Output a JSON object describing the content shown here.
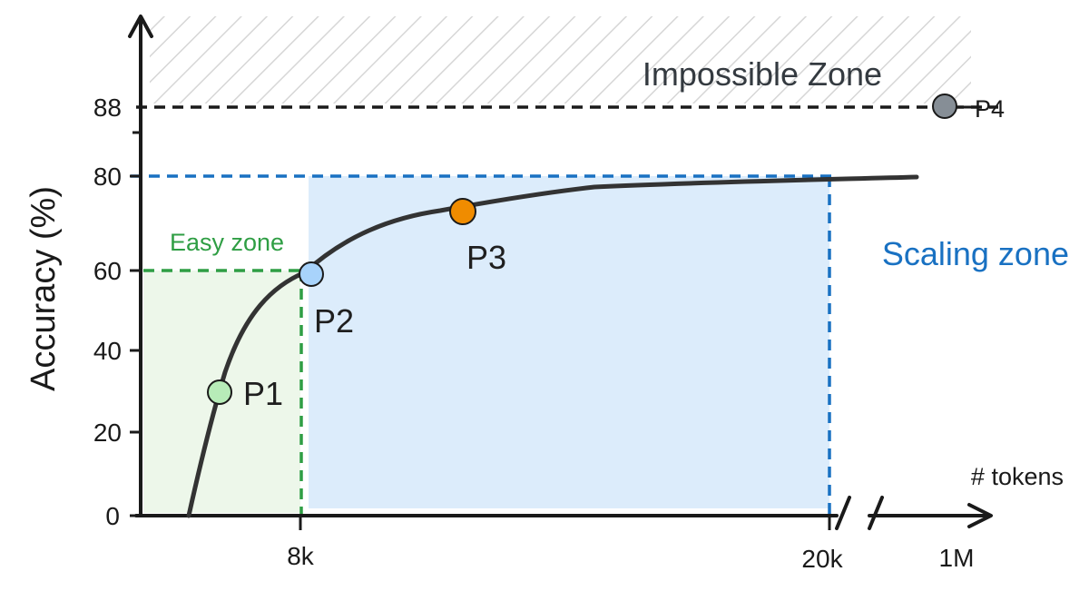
{
  "chart_data": {
    "type": "line",
    "ylabel": "Accuracy (%)",
    "xlabel": "# tokens",
    "y_ticks": [
      "0",
      "20",
      "40",
      "60",
      "80",
      "88"
    ],
    "x_ticks": [
      "8k",
      "20k",
      "1M"
    ],
    "x_axis_note": "broken axis between 20k and 1M",
    "ylim": [
      0,
      100
    ],
    "series": [
      {
        "x_tick_positions": [
          0.3,
          0.43,
          0.6,
          0.8,
          1.0,
          1.2,
          1.4,
          1.6,
          1.8,
          2.0,
          2.2,
          2.6,
          3.0,
          4.0,
          5.0,
          6.0
        ],
        "y": [
          0,
          20,
          34,
          44,
          50,
          55,
          59,
          63,
          66,
          69,
          71,
          73,
          75,
          77,
          78,
          79
        ],
        "color": "#333333"
      }
    ],
    "points": [
      {
        "label": "P1",
        "x": 0.62,
        "y": 30,
        "color": "#b7ecb8"
      },
      {
        "label": "P2",
        "x": 1.08,
        "y": 59,
        "color": "#a8d3fb"
      },
      {
        "label": "P3",
        "x": 2.25,
        "y": 73,
        "color": "#f08c00"
      },
      {
        "label": "P4",
        "x_label": "1M",
        "y": 88,
        "color": "#868e96"
      }
    ],
    "reference_lines": [
      {
        "y": 88,
        "style": "dashed",
        "color": "#1a1a1a"
      },
      {
        "y": 80,
        "style": "dashed",
        "color": "#1971c2"
      },
      {
        "y": 60,
        "style": "dashed",
        "color": "#2f9e44"
      }
    ],
    "zones": {
      "easy": {
        "label": "Easy zone",
        "x_range": [
          "0",
          "8k"
        ],
        "y_range": [
          0,
          60
        ],
        "color": "#2f9e44",
        "fill": "#edf7ea"
      },
      "scaling": {
        "label": "Scaling zone",
        "x_range": [
          "8k",
          "20k"
        ],
        "y_range": [
          0,
          80
        ],
        "color": "#1971c2",
        "fill": "#dcecfb"
      },
      "impossible": {
        "label": "Impossible Zone",
        "y_range": [
          88,
          100
        ],
        "color": "#343a40",
        "pattern": "hatched"
      }
    },
    "grid": false,
    "legend": "none"
  },
  "colors": {
    "axis": "#1a1a1a",
    "curve": "#333333",
    "hatch": "#d6d6d6"
  }
}
